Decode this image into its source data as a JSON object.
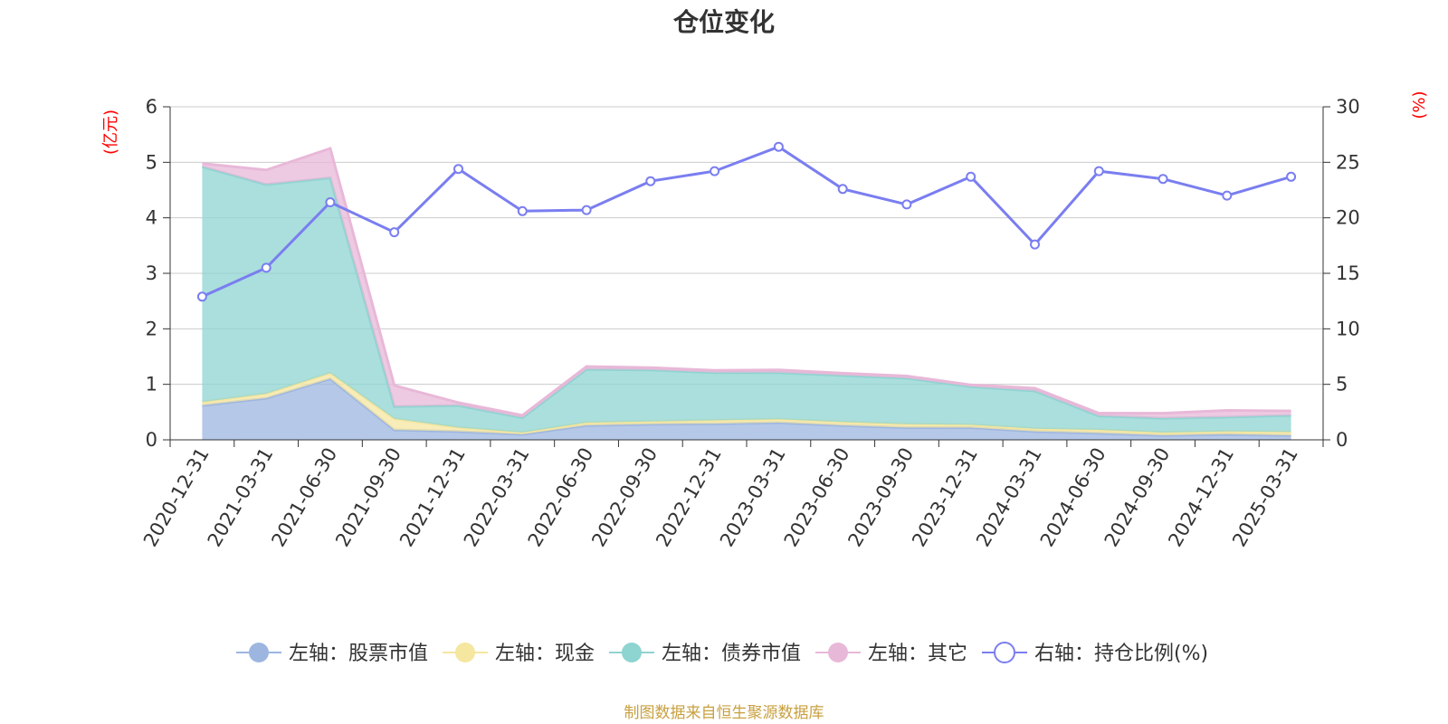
{
  "chart_data": {
    "type": "area",
    "title": "仓位变化",
    "left_axis_unit": "(亿元)",
    "right_axis_unit": "(%)",
    "categories": [
      "2020-12-31",
      "2021-03-31",
      "2021-06-30",
      "2021-09-30",
      "2021-12-31",
      "2022-03-31",
      "2022-06-30",
      "2022-09-30",
      "2022-12-31",
      "2023-03-31",
      "2023-06-30",
      "2023-09-30",
      "2023-12-31",
      "2024-03-31",
      "2024-06-30",
      "2024-09-30",
      "2024-12-31",
      "2025-03-31"
    ],
    "left_ylim": [
      0,
      6
    ],
    "left_ticks": [
      0,
      1,
      2,
      3,
      4,
      5,
      6
    ],
    "right_ylim": [
      0,
      30
    ],
    "right_ticks": [
      0,
      5,
      10,
      15,
      20,
      25,
      30
    ],
    "stacked_series": [
      {
        "name": "左轴：股票市值",
        "color": "#9db6e0",
        "values": [
          0.62,
          0.75,
          1.1,
          0.18,
          0.15,
          0.1,
          0.26,
          0.28,
          0.29,
          0.31,
          0.26,
          0.22,
          0.22,
          0.15,
          0.12,
          0.08,
          0.1,
          0.08
        ]
      },
      {
        "name": "左轴：现金",
        "color": "#f5e6a0",
        "values": [
          0.06,
          0.08,
          0.1,
          0.2,
          0.07,
          0.03,
          0.05,
          0.05,
          0.06,
          0.06,
          0.06,
          0.06,
          0.05,
          0.05,
          0.06,
          0.05,
          0.05,
          0.06
        ]
      },
      {
        "name": "左轴：债券市值",
        "color": "#8ed4d1",
        "values": [
          4.24,
          3.77,
          3.52,
          0.22,
          0.4,
          0.27,
          0.96,
          0.93,
          0.86,
          0.84,
          0.84,
          0.83,
          0.69,
          0.68,
          0.25,
          0.26,
          0.26,
          0.3
        ]
      },
      {
        "name": "左轴：其它",
        "color": "#e8b8d8",
        "values": [
          0.06,
          0.26,
          0.53,
          0.38,
          0.05,
          0.04,
          0.05,
          0.04,
          0.04,
          0.05,
          0.04,
          0.04,
          0.03,
          0.05,
          0.05,
          0.09,
          0.12,
          0.08
        ]
      }
    ],
    "line_series": {
      "name": "右轴：持仓比例(%)",
      "color": "#7a7ef0",
      "values": [
        12.9,
        15.5,
        21.4,
        18.7,
        24.4,
        20.6,
        20.7,
        23.3,
        24.2,
        26.4,
        22.6,
        21.2,
        23.7,
        17.6,
        24.2,
        23.5,
        22.0,
        23.7
      ]
    },
    "legend_position": "bottom",
    "grid": true
  },
  "source_note": "制图数据来自恒生聚源数据库"
}
